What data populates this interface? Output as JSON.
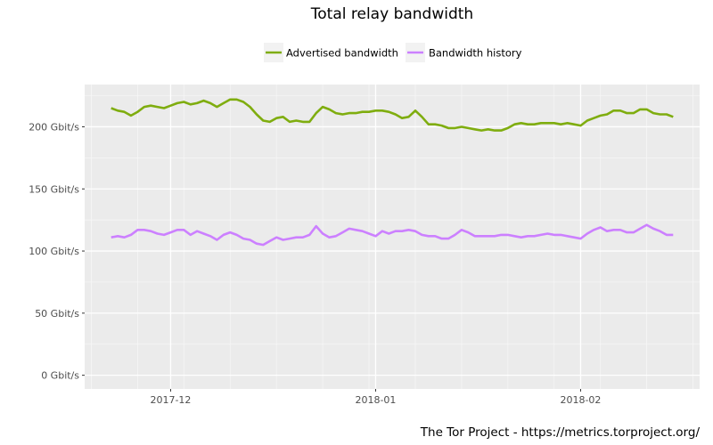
{
  "chart_data": {
    "type": "line",
    "title": "Total relay bandwidth",
    "xlabel": "",
    "ylabel": "",
    "x_start": "2017-11-22",
    "x_step": "1 day",
    "xlim": [
      "2017-11-18",
      "2018-02-19"
    ],
    "ylim": [
      -11,
      234
    ],
    "y_unit": "Gbit/s",
    "y_ticks": [
      0,
      50,
      100,
      150,
      200
    ],
    "y_tick_labels": [
      "0 Gbit/s",
      "50 Gbit/s",
      "100 Gbit/s",
      "150 Gbit/s",
      "200 Gbit/s"
    ],
    "x_ticks": [
      "2017-12-01",
      "2018-01-01",
      "2018-02-01"
    ],
    "x_tick_labels": [
      "2017-12",
      "2018-01",
      "2018-02"
    ],
    "grid": true,
    "legend_position": "top",
    "series": [
      {
        "name": "Advertised bandwidth",
        "color": "#7fad0f",
        "values": [
          215,
          213,
          212,
          209,
          212,
          216,
          217,
          216,
          215,
          217,
          219,
          220,
          218,
          219,
          221,
          219,
          216,
          219,
          222,
          222,
          220,
          216,
          210,
          205,
          204,
          207,
          208,
          204,
          205,
          204,
          204,
          211,
          216,
          214,
          211,
          210,
          211,
          211,
          212,
          212,
          213,
          213,
          212,
          210,
          207,
          208,
          213,
          208,
          202,
          202,
          201,
          199,
          199,
          200,
          199,
          198,
          197,
          198,
          197,
          197,
          199,
          202,
          203,
          202,
          202,
          203,
          203,
          203,
          202,
          203,
          202,
          201,
          205,
          207,
          209,
          210,
          213,
          213,
          211,
          211,
          214,
          214,
          211,
          210,
          210,
          208
        ]
      },
      {
        "name": "Bandwidth history",
        "color": "#cc80ff",
        "values": [
          111,
          112,
          111,
          113,
          117,
          117,
          116,
          114,
          113,
          115,
          117,
          117,
          113,
          116,
          114,
          112,
          109,
          113,
          115,
          113,
          110,
          109,
          106,
          105,
          108,
          111,
          109,
          110,
          111,
          111,
          113,
          120,
          114,
          111,
          112,
          115,
          118,
          117,
          116,
          114,
          112,
          116,
          114,
          116,
          116,
          117,
          116,
          113,
          112,
          112,
          110,
          110,
          113,
          117,
          115,
          112,
          112,
          112,
          112,
          113,
          113,
          112,
          111,
          112,
          112,
          113,
          114,
          113,
          113,
          112,
          111,
          110,
          114,
          117,
          119,
          116,
          117,
          117,
          115,
          115,
          118,
          121,
          118,
          116,
          113,
          113
        ]
      }
    ],
    "caption": "The Tor Project - https://metrics.torproject.org/"
  }
}
